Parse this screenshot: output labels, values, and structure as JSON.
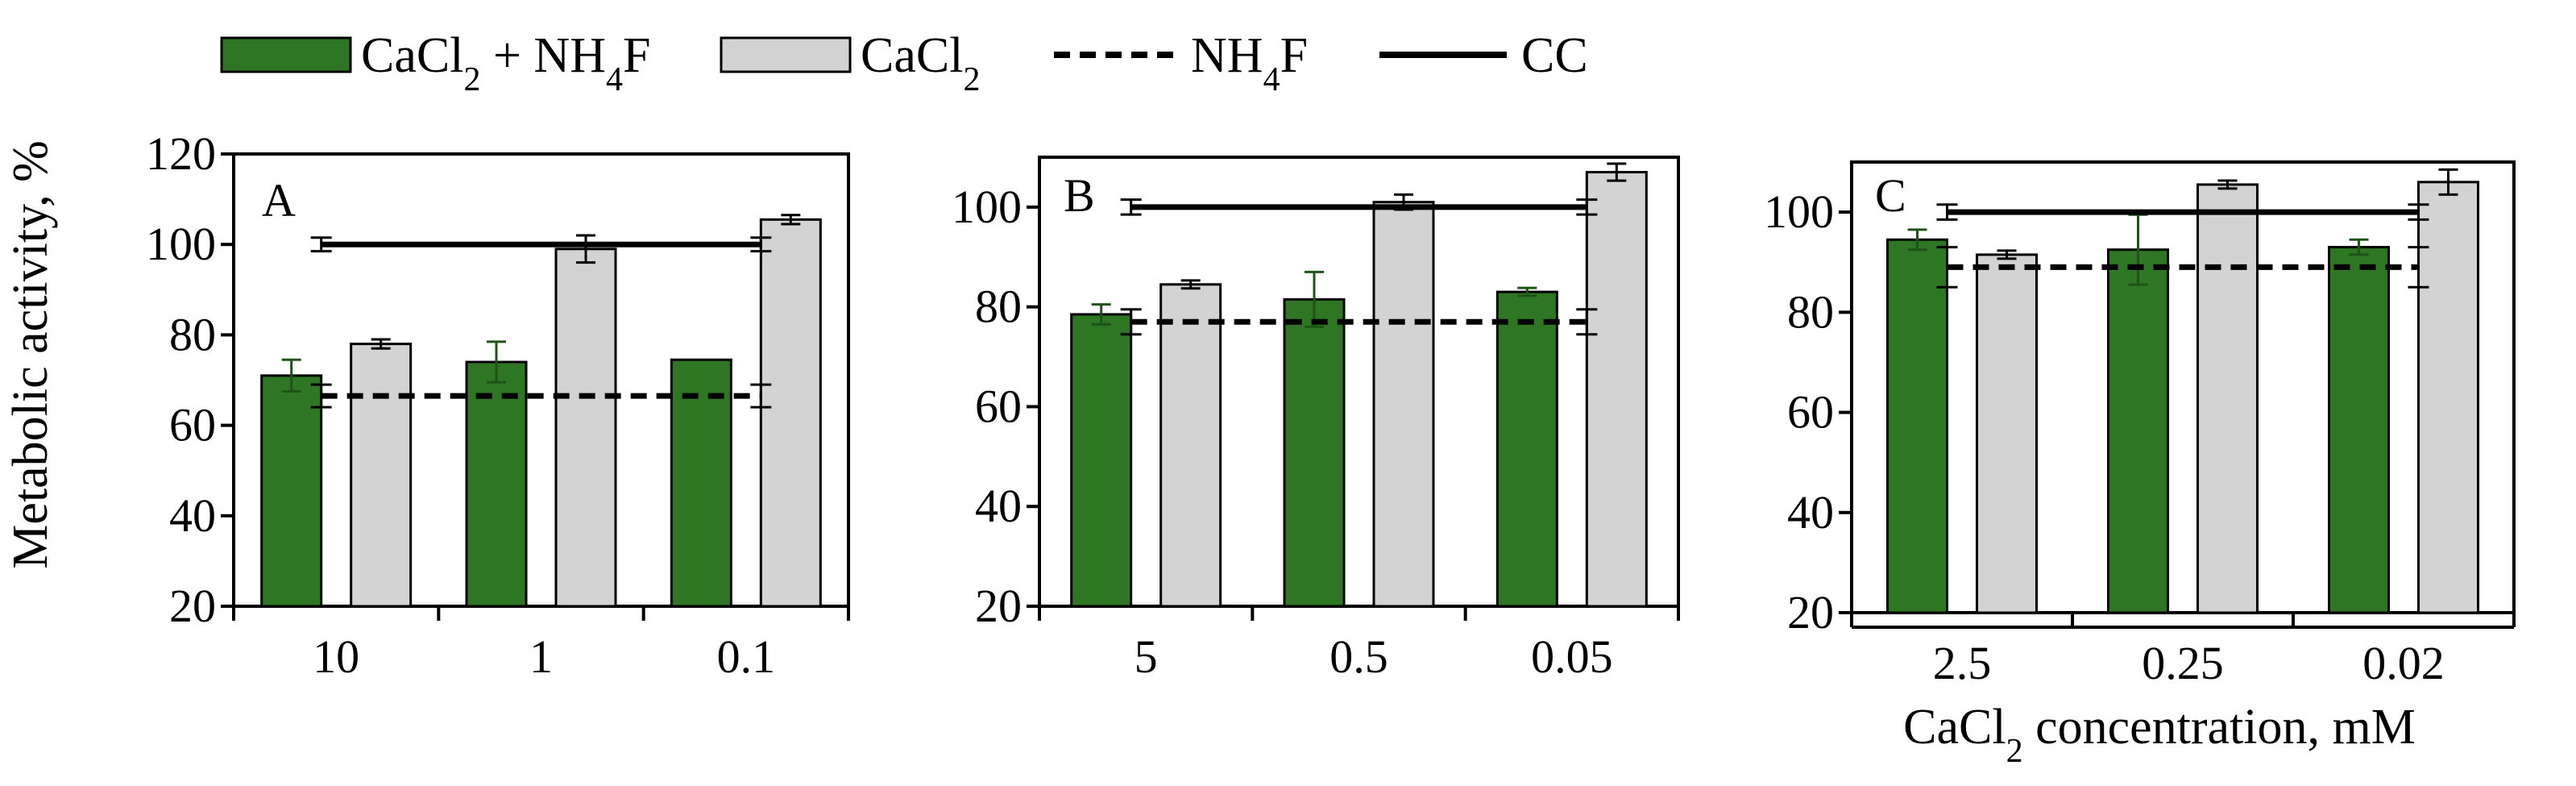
{
  "legend": {
    "items": [
      {
        "key": "combo",
        "label": "CaCl",
        "sub": "2",
        "label_b": " + NH",
        "sub_b": "4",
        "label_c": "F",
        "style": "bar",
        "color": "#2e7524"
      },
      {
        "key": "cacl2",
        "label": "CaCl",
        "sub": "2",
        "label_b": "",
        "sub_b": "",
        "label_c": "",
        "style": "bar",
        "color": "#d3d3d3"
      },
      {
        "key": "nh4f",
        "label": "NH",
        "sub": "4",
        "label_b": "F",
        "sub_b": "",
        "label_c": "",
        "style": "dashed",
        "color": "#000000"
      },
      {
        "key": "cc",
        "label": "CC",
        "sub": "",
        "label_b": "",
        "sub_b": "",
        "label_c": "",
        "style": "solid",
        "color": "#000000"
      }
    ]
  },
  "ylabel": "Metabolic activity, %",
  "xlabel": {
    "main": "CaCl",
    "sub": "2",
    "rest": " concentration, mM"
  },
  "chart_data": [
    {
      "type": "bar",
      "panel": "A",
      "categories": [
        "10",
        "1",
        "0.1"
      ],
      "ylim": [
        20,
        120
      ],
      "yticks": [
        20,
        40,
        60,
        80,
        100,
        120
      ],
      "series": [
        {
          "key": "combo",
          "values": [
            71,
            74,
            74.5
          ],
          "errors": [
            3.5,
            4.5,
            0
          ],
          "color": "#2e7524"
        },
        {
          "key": "cacl2",
          "values": [
            78,
            99,
            105.5
          ],
          "errors": [
            1,
            3,
            1
          ],
          "color": "#d3d3d3"
        }
      ],
      "reference_lines": [
        {
          "key": "nh4f",
          "value": 66.5,
          "error": 2.5,
          "style": "dashed"
        },
        {
          "key": "cc",
          "value": 100,
          "error": 1.5,
          "style": "solid"
        }
      ]
    },
    {
      "type": "bar",
      "panel": "B",
      "categories": [
        "5",
        "0.5",
        "0.05"
      ],
      "ylim": [
        20,
        110
      ],
      "yticks": [
        20,
        40,
        60,
        80,
        100
      ],
      "series": [
        {
          "key": "combo",
          "values": [
            78.5,
            81.5,
            83
          ],
          "errors": [
            2,
            5.5,
            0.8
          ],
          "color": "#2e7524"
        },
        {
          "key": "cacl2",
          "values": [
            84.5,
            101,
            107
          ],
          "errors": [
            0.8,
            1.5,
            1.7
          ],
          "color": "#d3d3d3"
        }
      ],
      "reference_lines": [
        {
          "key": "nh4f",
          "value": 77,
          "error": 2.5,
          "style": "dashed"
        },
        {
          "key": "cc",
          "value": 100,
          "error": 1.5,
          "style": "solid"
        }
      ]
    },
    {
      "type": "bar",
      "panel": "C",
      "categories": [
        "2.5",
        "0.25",
        "0.02"
      ],
      "ylim": [
        20,
        110
      ],
      "yticks": [
        20,
        40,
        60,
        80,
        100
      ],
      "series": [
        {
          "key": "combo",
          "values": [
            94.5,
            92.5,
            93
          ],
          "errors": [
            2,
            7,
            1.5
          ],
          "color": "#2e7524"
        },
        {
          "key": "cacl2",
          "values": [
            91.5,
            105.5,
            106
          ],
          "errors": [
            0.8,
            0.8,
            2.5
          ],
          "color": "#d3d3d3"
        }
      ],
      "reference_lines": [
        {
          "key": "nh4f",
          "value": 89,
          "error": 4,
          "style": "dashed"
        },
        {
          "key": "cc",
          "value": 100,
          "error": 1.5,
          "style": "solid"
        }
      ]
    }
  ]
}
